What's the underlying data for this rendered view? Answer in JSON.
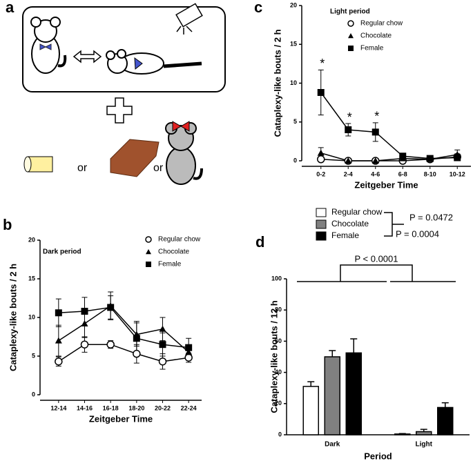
{
  "panel_labels": [
    "a",
    "b",
    "c",
    "d"
  ],
  "diagram": {
    "connectors": [
      "or",
      "or"
    ]
  },
  "chart_data": [
    {
      "type": "line",
      "title": "Dark period",
      "x_label": "Zeitgeber Time",
      "y_label": "Cataplexy-like bouts / 2 h",
      "categories": [
        "12-14",
        "14-16",
        "16-18",
        "18-20",
        "20-22",
        "22-24"
      ],
      "ylim": [
        0,
        20
      ],
      "yticks": [
        0,
        5,
        10,
        15,
        20
      ],
      "series": [
        {
          "name": "Regular chow",
          "marker": "circle",
          "color": "#000000",
          "values": [
            4.3,
            6.5,
            6.5,
            5.3,
            4.3,
            4.8
          ],
          "errors": [
            0.6,
            1.0,
            0.5,
            1.2,
            1.0,
            0.6
          ]
        },
        {
          "name": "Chocolate",
          "marker": "triangle",
          "color": "#000000",
          "values": [
            7.0,
            9.2,
            11.5,
            7.8,
            8.5,
            5.5
          ],
          "errors": [
            2.0,
            1.8,
            1.8,
            1.5,
            1.5,
            0.8
          ]
        },
        {
          "name": "Female",
          "marker": "square",
          "color": "#000000",
          "values": [
            10.6,
            10.8,
            11.3,
            7.3,
            6.5,
            6.1
          ],
          "errors": [
            1.8,
            1.8,
            1.5,
            2.2,
            1.5,
            1.2
          ]
        }
      ]
    },
    {
      "type": "line",
      "title": "Light period",
      "x_label": "Zeitgeber Time",
      "y_label": "Cataplexy-like bouts / 2 h",
      "categories": [
        "0-2",
        "2-4",
        "4-6",
        "6-8",
        "8-10",
        "10-12"
      ],
      "ylim": [
        0,
        20
      ],
      "yticks": [
        0,
        5,
        10,
        15,
        20
      ],
      "annotations": [
        "*",
        "*",
        "*"
      ],
      "series": [
        {
          "name": "Regular chow",
          "marker": "circle",
          "color": "#000000",
          "values": [
            0.2,
            0,
            0,
            0,
            0.2,
            0.5
          ],
          "errors": [
            0.3,
            0,
            0,
            0,
            0.2,
            0.4
          ]
        },
        {
          "name": "Chocolate",
          "marker": "triangle",
          "color": "#000000",
          "values": [
            1.0,
            0,
            0,
            0.3,
            0.2,
            0.8
          ],
          "errors": [
            0.7,
            0,
            0,
            0.2,
            0.2,
            0.6
          ]
        },
        {
          "name": "Female",
          "marker": "square",
          "color": "#000000",
          "values": [
            8.8,
            4.0,
            3.7,
            0.6,
            0.3,
            0.4
          ],
          "errors": [
            2.9,
            0.8,
            1.2,
            0.2,
            0.2,
            0.3
          ]
        }
      ]
    },
    {
      "type": "bar",
      "x_label": "Period",
      "y_label": "Cataplexy-like bouts / 12 h",
      "categories": [
        "Dark",
        "Light"
      ],
      "ylim": [
        0,
        100
      ],
      "yticks": [
        0,
        20,
        40,
        60,
        80,
        100
      ],
      "annotations": [
        "P = 0.0472",
        "P = 0.0004",
        "P < 0.0001"
      ],
      "series": [
        {
          "name": "Regular chow",
          "color": "#ffffff",
          "values": [
            31,
            0.5
          ],
          "errors": [
            3,
            0.3
          ]
        },
        {
          "name": "Chocolate",
          "color": "#808080",
          "values": [
            50,
            2
          ],
          "errors": [
            4,
            1.5
          ]
        },
        {
          "name": "Female",
          "color": "#000000",
          "values": [
            52.5,
            17.5
          ],
          "errors": [
            9,
            3
          ]
        }
      ]
    }
  ]
}
